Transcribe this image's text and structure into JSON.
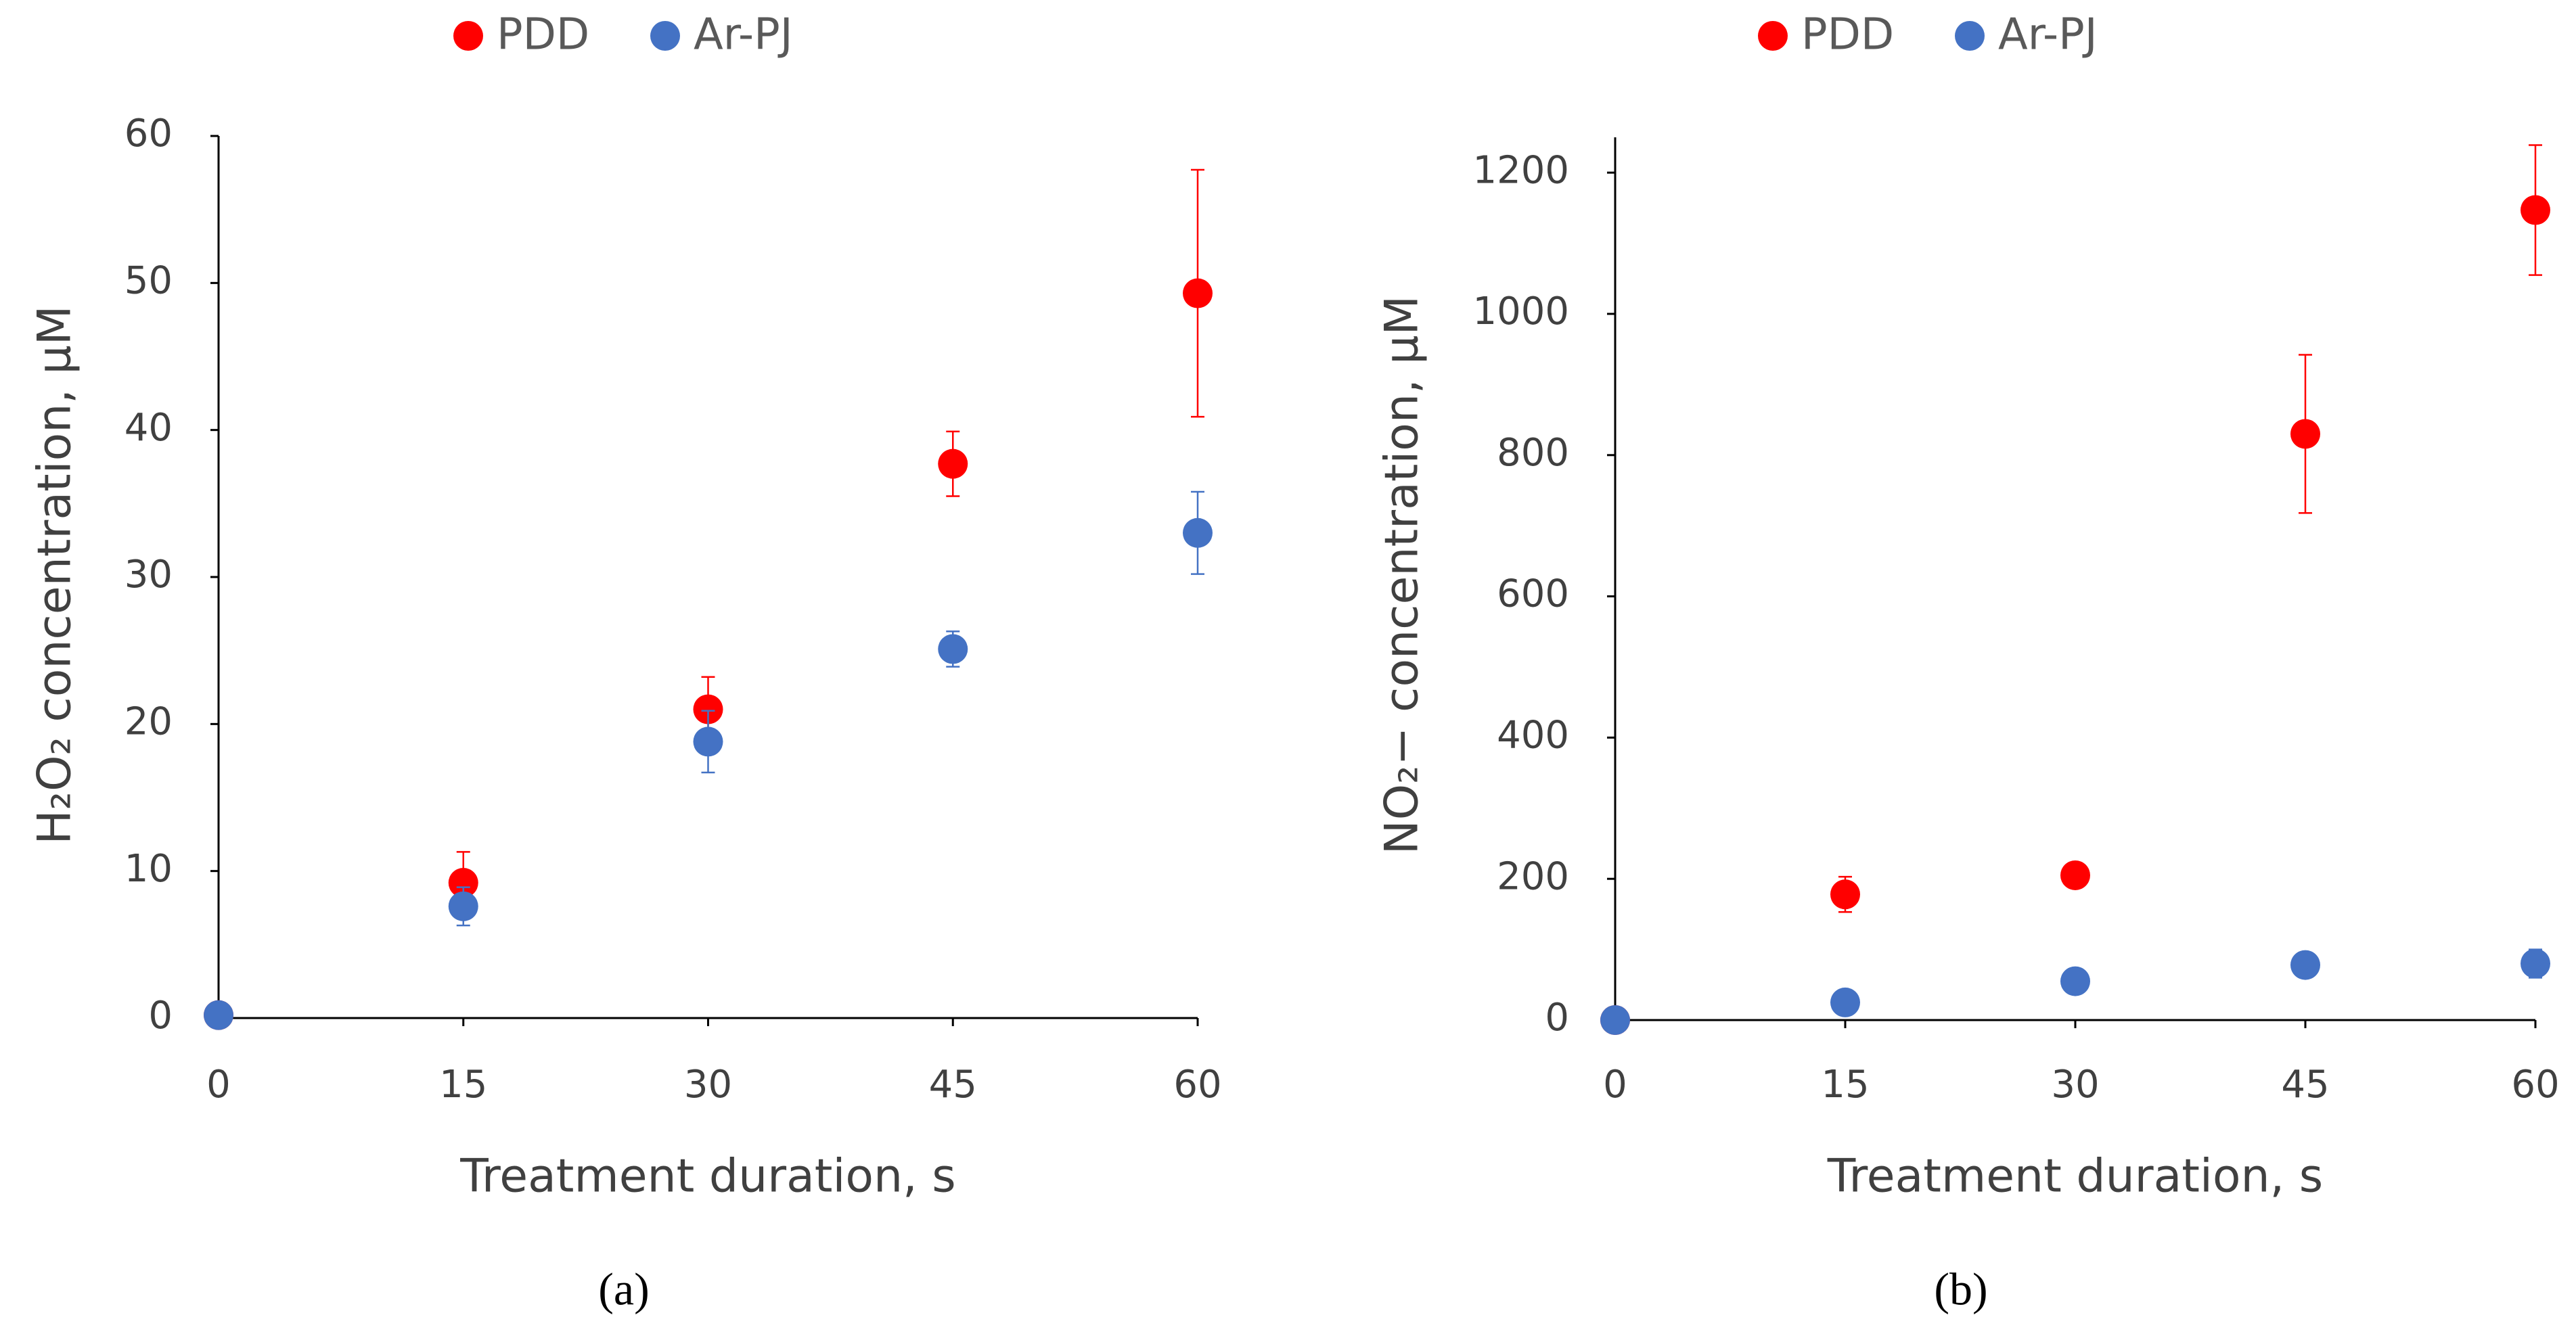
{
  "chart_data": [
    {
      "type": "scatter",
      "panel_label": "(a)",
      "x_label": "Treatment duration, s",
      "y_label": "H₂O₂ concentration, μM",
      "x": [
        0,
        15,
        30,
        45,
        60
      ],
      "series": [
        {
          "name": "PDD",
          "color": "#ff0000",
          "values": [
            0.2,
            9.2,
            21,
            37.7,
            49.3
          ],
          "errors": [
            0,
            2.1,
            2.2,
            2.2,
            8.4
          ]
        },
        {
          "name": "Ar-PJ",
          "color": "#4472c4",
          "values": [
            0.2,
            7.6,
            18.8,
            25.1,
            33
          ],
          "errors": [
            0,
            1.3,
            2.1,
            1.2,
            2.8
          ]
        }
      ],
      "xlim": [
        0,
        60
      ],
      "xticks": [
        0,
        15,
        30,
        45,
        60
      ],
      "ylim": [
        0,
        60
      ],
      "yticks": [
        0,
        10,
        20,
        30,
        40,
        50,
        60
      ],
      "grid": false,
      "legend": "top"
    },
    {
      "type": "scatter",
      "panel_label": "(b)",
      "x_label": "Treatment duration, s",
      "y_label": "NO₂− concentration, μM",
      "x": [
        0,
        15,
        30,
        45,
        60
      ],
      "series": [
        {
          "name": "PDD",
          "color": "#ff0000",
          "values": [
            0,
            178,
            205,
            830,
            1147
          ],
          "errors": [
            0,
            25,
            10,
            112,
            92
          ]
        },
        {
          "name": "Ar-PJ",
          "color": "#4472c4",
          "values": [
            0,
            25,
            55,
            78,
            80
          ],
          "errors": [
            0,
            0,
            0,
            0,
            20
          ]
        }
      ],
      "xlim": [
        0,
        60
      ],
      "xticks": [
        0,
        15,
        30,
        45,
        60
      ],
      "ylim": [
        0,
        1250
      ],
      "yticks": [
        0,
        200,
        400,
        600,
        800,
        1000,
        1200
      ],
      "grid": false,
      "legend": "top"
    }
  ]
}
